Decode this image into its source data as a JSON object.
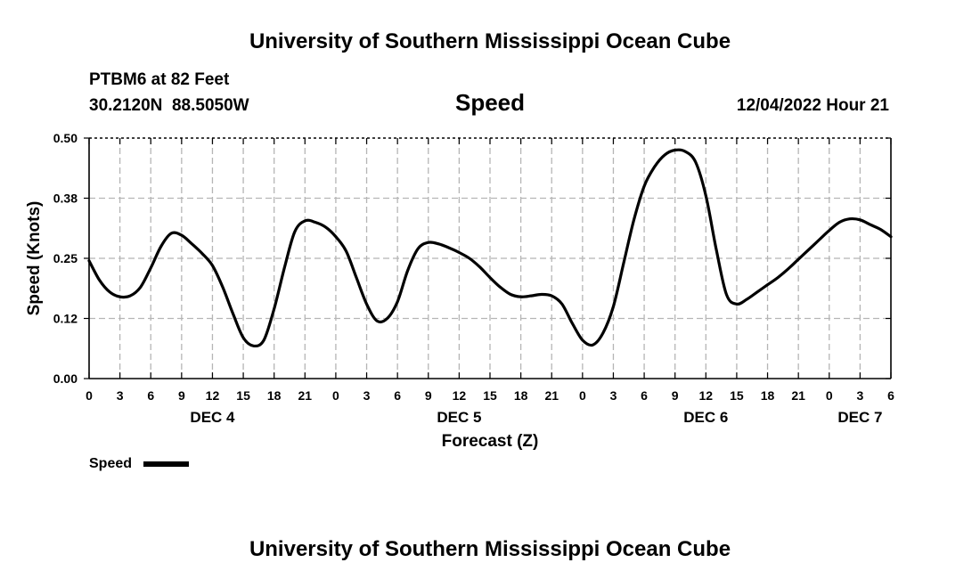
{
  "header": {
    "title": "University of Southern Mississippi Ocean Cube",
    "station": "PTBM6 at 82 Feet",
    "coords": "30.2120N  88.5050W",
    "date": "12/04/2022 Hour 21",
    "footer_title": "University of Southern Mississippi Ocean Cube"
  },
  "chart_data": {
    "type": "line",
    "title": "Speed",
    "xlabel": "Forecast (Z)",
    "ylabel": "Speed (Knots)",
    "xlim": [
      0,
      78
    ],
    "ylim": [
      0,
      0.5
    ],
    "yticks": [
      0.0,
      0.125,
      0.25,
      0.375,
      0.5
    ],
    "ytick_labels": [
      "0.00",
      "0.12",
      "0.25",
      "0.38",
      "0.50"
    ],
    "xticks": [
      0,
      3,
      6,
      9,
      12,
      15,
      18,
      21,
      24,
      27,
      30,
      33,
      36,
      39,
      42,
      45,
      48,
      51,
      54,
      57,
      60,
      63,
      66,
      69,
      72,
      75,
      78
    ],
    "xtick_labels": [
      "0",
      "3",
      "6",
      "9",
      "12",
      "15",
      "18",
      "21",
      "0",
      "3",
      "6",
      "9",
      "12",
      "15",
      "18",
      "21",
      "0",
      "3",
      "6",
      "9",
      "12",
      "15",
      "18",
      "21",
      "0",
      "3",
      "6"
    ],
    "day_labels": [
      {
        "x": 12,
        "label": "DEC 4"
      },
      {
        "x": 36,
        "label": "DEC 5"
      },
      {
        "x": 60,
        "label": "DEC 6"
      },
      {
        "x": 75,
        "label": "DEC 7"
      }
    ],
    "grid": true,
    "legend": [
      {
        "label": "Speed",
        "color": "#000000"
      }
    ],
    "series": [
      {
        "name": "Speed",
        "color": "#000000",
        "x": [
          0,
          1,
          2,
          3,
          4,
          5,
          6,
          7,
          8,
          9,
          10,
          11,
          12,
          13,
          14,
          15,
          16,
          17,
          18,
          19,
          20,
          21,
          22,
          23,
          24,
          25,
          26,
          27,
          28,
          29,
          30,
          31,
          32,
          33,
          34,
          35,
          36,
          37,
          38,
          39,
          40,
          41,
          42,
          43,
          44,
          45,
          46,
          47,
          48,
          49,
          50,
          51,
          52,
          53,
          54,
          55,
          56,
          57,
          58,
          59,
          60,
          61,
          62,
          63,
          64,
          65,
          66,
          67,
          68,
          69,
          70,
          71,
          72,
          73,
          74,
          75,
          76,
          77,
          78
        ],
        "values": [
          0.245,
          0.205,
          0.18,
          0.17,
          0.172,
          0.19,
          0.23,
          0.275,
          0.302,
          0.298,
          0.28,
          0.26,
          0.235,
          0.19,
          0.135,
          0.085,
          0.068,
          0.08,
          0.145,
          0.23,
          0.305,
          0.328,
          0.325,
          0.315,
          0.295,
          0.265,
          0.21,
          0.155,
          0.12,
          0.125,
          0.16,
          0.225,
          0.27,
          0.283,
          0.28,
          0.272,
          0.262,
          0.25,
          0.232,
          0.21,
          0.19,
          0.175,
          0.17,
          0.172,
          0.175,
          0.172,
          0.155,
          0.115,
          0.08,
          0.07,
          0.095,
          0.15,
          0.24,
          0.33,
          0.4,
          0.44,
          0.465,
          0.475,
          0.472,
          0.45,
          0.38,
          0.27,
          0.175,
          0.155,
          0.165,
          0.18,
          0.195,
          0.21,
          0.228,
          0.248,
          0.268,
          0.288,
          0.308,
          0.325,
          0.332,
          0.33,
          0.32,
          0.31,
          0.295
        ]
      }
    ]
  }
}
